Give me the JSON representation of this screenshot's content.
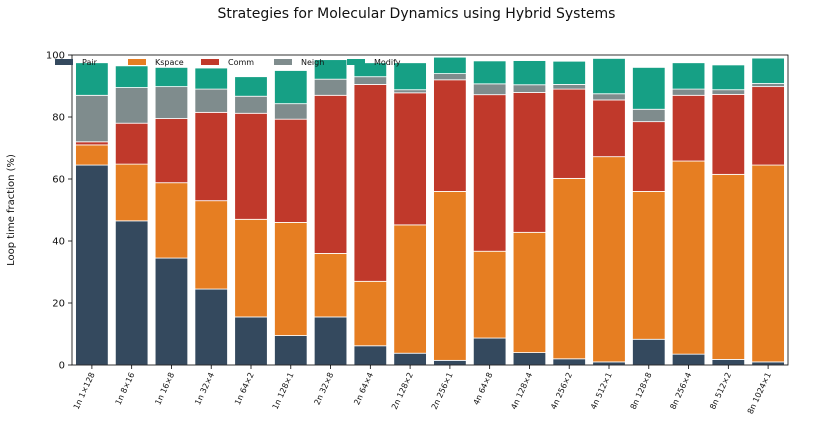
{
  "chart_data": {
    "type": "bar",
    "stacked": true,
    "title": "Strategies for Molecular Dynamics using Hybrid Systems",
    "xlabel": "",
    "ylabel": "Loop time fraction (%)",
    "ylim": [
      0,
      100
    ],
    "yticks": [
      0,
      20,
      40,
      60,
      80,
      100
    ],
    "grid": false,
    "legend": "top-left, single row",
    "categories": [
      "1n 1×128",
      "1n 8×16",
      "1n 16×8",
      "1n 32×4",
      "1n 64×2",
      "1n 128×1",
      "2n 32×8",
      "2n 64×4",
      "2n 128×2",
      "2n 256×1",
      "4n 64×8",
      "4n 128×4",
      "4n 256×2",
      "4n 512×1",
      "8n 128×8",
      "8n 256×4",
      "8n 512×2",
      "8n 1024×1"
    ],
    "series": [
      {
        "name": "Pair",
        "color": "#34495e",
        "values": [
          64.5,
          46.5,
          34.5,
          24.5,
          15.5,
          9.5,
          15.5,
          6.2,
          3.8,
          1.5,
          8.7,
          4.0,
          2.0,
          1.0,
          8.3,
          3.5,
          1.8,
          1.0
        ]
      },
      {
        "name": "Kspace",
        "color": "#e67e22",
        "values": [
          6.5,
          18.3,
          24.3,
          28.5,
          31.5,
          36.5,
          20.5,
          20.8,
          41.4,
          54.5,
          28.0,
          38.8,
          58.2,
          66.2,
          47.7,
          62.3,
          59.7,
          63.5
        ]
      },
      {
        "name": "Comm",
        "color": "#c0392b",
        "values": [
          1.0,
          13.2,
          20.7,
          28.5,
          34.2,
          33.3,
          51.0,
          63.5,
          42.6,
          36.0,
          50.5,
          45.1,
          28.8,
          18.3,
          22.5,
          21.2,
          25.8,
          25.3
        ]
      },
      {
        "name": "Neigh",
        "color": "#7f8c8d",
        "values": [
          15.0,
          11.5,
          10.3,
          7.5,
          5.5,
          5.0,
          5.2,
          2.5,
          1.0,
          2.0,
          3.5,
          2.5,
          1.5,
          2.0,
          4.0,
          2.0,
          1.5,
          1.0
        ]
      },
      {
        "name": "Modify",
        "color": "#16a085",
        "values": [
          10.5,
          7.0,
          6.2,
          6.8,
          6.3,
          10.7,
          6.3,
          4.5,
          8.7,
          5.3,
          7.4,
          7.8,
          7.5,
          11.4,
          13.5,
          8.5,
          8.0,
          8.2
        ]
      }
    ]
  }
}
